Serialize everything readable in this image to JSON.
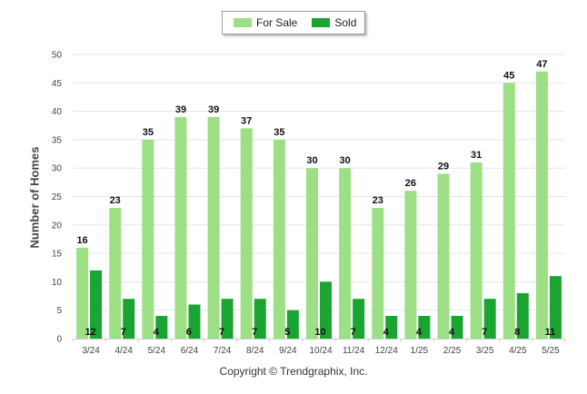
{
  "chart_data": {
    "type": "bar",
    "categories": [
      "3/24",
      "4/24",
      "5/24",
      "6/24",
      "7/24",
      "8/24",
      "9/24",
      "10/24",
      "11/24",
      "12/24",
      "1/25",
      "2/25",
      "3/25",
      "4/25",
      "5/25"
    ],
    "series": [
      {
        "name": "For Sale",
        "values": [
          16,
          23,
          35,
          39,
          39,
          37,
          35,
          30,
          30,
          23,
          26,
          29,
          31,
          45,
          47
        ],
        "color": "#9ddf84"
      },
      {
        "name": "Sold",
        "values": [
          12,
          7,
          4,
          6,
          7,
          7,
          5,
          10,
          7,
          4,
          4,
          4,
          7,
          8,
          11
        ],
        "color": "#1aa532"
      }
    ],
    "xlabel": "",
    "ylabel": "Number of Homes",
    "ylim": [
      0,
      50
    ],
    "yticks": [
      0,
      5,
      10,
      15,
      20,
      25,
      30,
      35,
      40,
      45,
      50
    ],
    "grid": true,
    "legend_position": "top-center"
  },
  "footer": "Copyright © Trendgraphix, Inc."
}
